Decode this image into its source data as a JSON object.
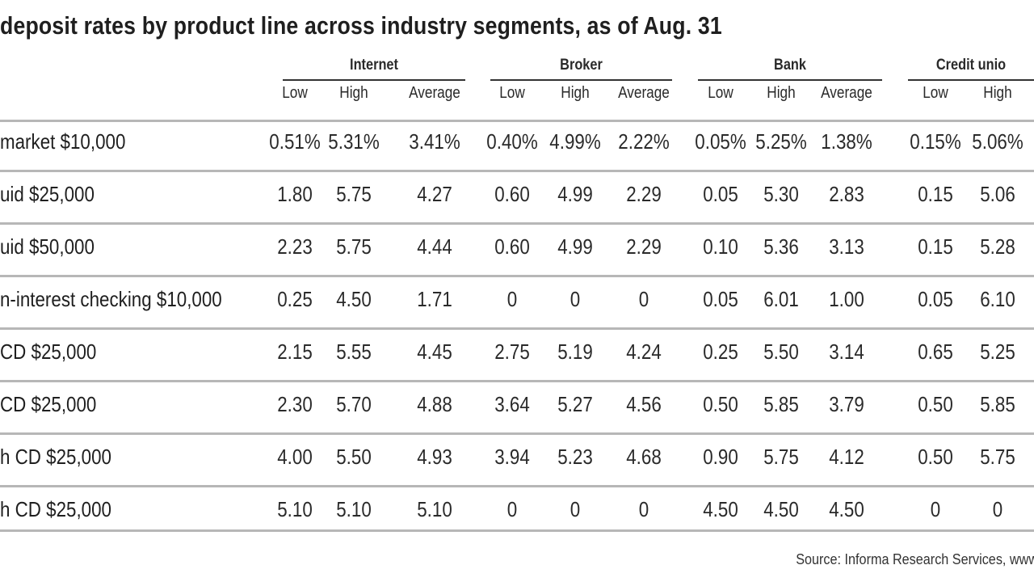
{
  "title": "deposit rates by product line across industry segments, as of Aug. 31",
  "segments": [
    "Internet",
    "Broker",
    "Bank",
    "Credit unio"
  ],
  "subheaders": [
    "Low",
    "High",
    "Average",
    "Low",
    "High",
    "Average",
    "Low",
    "High",
    "Average",
    "Low",
    "High"
  ],
  "rows": [
    {
      "label": "market $10,000",
      "values": [
        "0.51%",
        "5.31%",
        "3.41%",
        "0.40%",
        "4.99%",
        "2.22%",
        "0.05%",
        "5.25%",
        "1.38%",
        "0.15%",
        "5.06%"
      ]
    },
    {
      "label": "uid $25,000",
      "values": [
        "1.80",
        "5.75",
        "4.27",
        "0.60",
        "4.99",
        "2.29",
        "0.05",
        "5.30",
        "2.83",
        "0.15",
        "5.06"
      ]
    },
    {
      "label": "uid $50,000",
      "values": [
        "2.23",
        "5.75",
        "4.44",
        "0.60",
        "4.99",
        "2.29",
        "0.10",
        "5.36",
        "3.13",
        "0.15",
        "5.28"
      ]
    },
    {
      "label": "n-interest checking $10,000",
      "values": [
        "0.25",
        "4.50",
        "1.71",
        "0",
        "0",
        "0",
        "0.05",
        "6.01",
        "1.00",
        "0.05",
        "6.10"
      ]
    },
    {
      "label": "CD $25,000",
      "values": [
        "2.15",
        "5.55",
        "4.45",
        "2.75",
        "5.19",
        "4.24",
        "0.25",
        "5.50",
        "3.14",
        "0.65",
        "5.25"
      ]
    },
    {
      "label": "CD $25,000",
      "values": [
        "2.30",
        "5.70",
        "4.88",
        "3.64",
        "5.27",
        "4.56",
        "0.50",
        "5.85",
        "3.79",
        "0.50",
        "5.85"
      ]
    },
    {
      "label": "h CD $25,000",
      "values": [
        "4.00",
        "5.50",
        "4.93",
        "3.94",
        "5.23",
        "4.68",
        "0.90",
        "5.75",
        "4.12",
        "0.50",
        "5.75"
      ]
    },
    {
      "label": "h CD $25,000",
      "values": [
        "5.10",
        "5.10",
        "5.10",
        "0",
        "0",
        "0",
        "4.50",
        "4.50",
        "4.50",
        "0",
        "0"
      ]
    }
  ],
  "source": "Source: Informa Research Services, www.infor"
}
